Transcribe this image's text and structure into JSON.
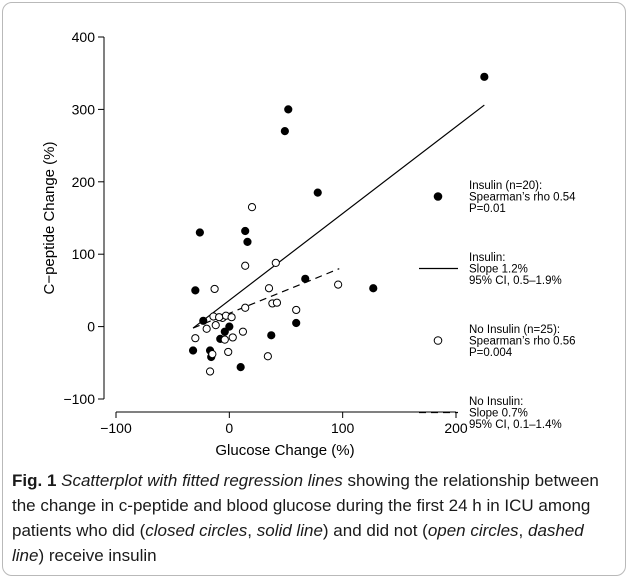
{
  "chart_data": {
    "type": "scatter",
    "xlabel": "Glucose Change (%)",
    "ylabel": "C−peptide Change (%)",
    "xlim": [
      -120,
      240
    ],
    "ylim": [
      -110,
      410
    ],
    "x_ticks": [
      -100,
      0,
      100,
      200
    ],
    "x_tick_labels": [
      "−100",
      "0",
      "100",
      "200"
    ],
    "y_ticks": [
      -100,
      0,
      100,
      200,
      300,
      400
    ],
    "y_tick_labels": [
      "−100",
      "0",
      "100",
      "200",
      "300",
      "400"
    ],
    "grid": false,
    "legend_position": "right",
    "series": [
      {
        "marker": "filled-circle",
        "points": [
          {
            "x": 225,
            "y": 345
          },
          {
            "x": 52,
            "y": 300
          },
          {
            "x": 49,
            "y": 270
          },
          {
            "x": 78,
            "y": 185
          },
          {
            "x": 14,
            "y": 132
          },
          {
            "x": 16,
            "y": 117
          },
          {
            "x": -26,
            "y": 130
          },
          {
            "x": -30,
            "y": 50
          },
          {
            "x": 67,
            "y": 66
          },
          {
            "x": 127,
            "y": 53
          },
          {
            "x": -23,
            "y": 8
          },
          {
            "x": -32,
            "y": -33
          },
          {
            "x": -17,
            "y": -33
          },
          {
            "x": -16,
            "y": -42
          },
          {
            "x": -8,
            "y": -17
          },
          {
            "x": -4,
            "y": -7
          },
          {
            "x": 0,
            "y": 0
          },
          {
            "x": 37,
            "y": -12
          },
          {
            "x": 59,
            "y": 5
          },
          {
            "x": 10,
            "y": -56
          }
        ]
      },
      {
        "marker": "open-circle",
        "points": [
          {
            "x": 20,
            "y": 165
          },
          {
            "x": 14,
            "y": 84
          },
          {
            "x": 41,
            "y": 88
          },
          {
            "x": 96,
            "y": 58
          },
          {
            "x": -13,
            "y": 52
          },
          {
            "x": 35,
            "y": 53
          },
          {
            "x": 38,
            "y": 32
          },
          {
            "x": 42,
            "y": 33
          },
          {
            "x": 14,
            "y": 26
          },
          {
            "x": 59,
            "y": 23
          },
          {
            "x": -14,
            "y": 14
          },
          {
            "x": -6,
            "y": 12
          },
          {
            "x": -3,
            "y": 15
          },
          {
            "x": -9,
            "y": 13
          },
          {
            "x": 2,
            "y": 13
          },
          {
            "x": -20,
            "y": -3
          },
          {
            "x": -12,
            "y": 2
          },
          {
            "x": -30,
            "y": -16
          },
          {
            "x": -4,
            "y": -18
          },
          {
            "x": 3,
            "y": -15
          },
          {
            "x": 12,
            "y": -7
          },
          {
            "x": -1,
            "y": -35
          },
          {
            "x": -15,
            "y": -38
          },
          {
            "x": 34,
            "y": -41
          },
          {
            "x": -17,
            "y": -62
          }
        ]
      }
    ],
    "fit_lines": [
      {
        "style": "solid",
        "x": [
          -32,
          225
        ],
        "y": [
          -2,
          306
        ]
      },
      {
        "style": "dashed",
        "x": [
          -32,
          97
        ],
        "y": [
          -2,
          80
        ]
      }
    ],
    "legend": [
      {
        "marker": "filled-circle",
        "lines": [
          "Insulin (n=20):",
          "Spearman’s rho 0.54",
          "P=0.01"
        ]
      },
      {
        "marker": "solid-line",
        "lines": [
          "Insulin:",
          "Slope 1.2%",
          "95% CI, 0.5–1.9%"
        ]
      },
      {
        "marker": "open-circle",
        "lines": [
          "No Insulin (n=25):",
          "Spearman’s rho 0.56",
          "P=0.004"
        ]
      },
      {
        "marker": "dashed-line",
        "lines": [
          "No Insulin:",
          "Slope 0.7%",
          "95% CI, 0.1–1.4%"
        ]
      }
    ]
  },
  "caption": {
    "label": "Fig. 1",
    "italic_title": "Scatterplot with fitted regression lines",
    "text_1": " showing the relationship between the change in c-peptide and blood glucose during the first 24 h in ICU among patients who did (",
    "italic_1": "closed circles",
    "sep_1": ", ",
    "italic_2": "solid line",
    "text_2": ") and did not (",
    "italic_3": "open circles",
    "sep_2": ", ",
    "italic_4": "dashed line",
    "text_3": ") receive insulin"
  }
}
